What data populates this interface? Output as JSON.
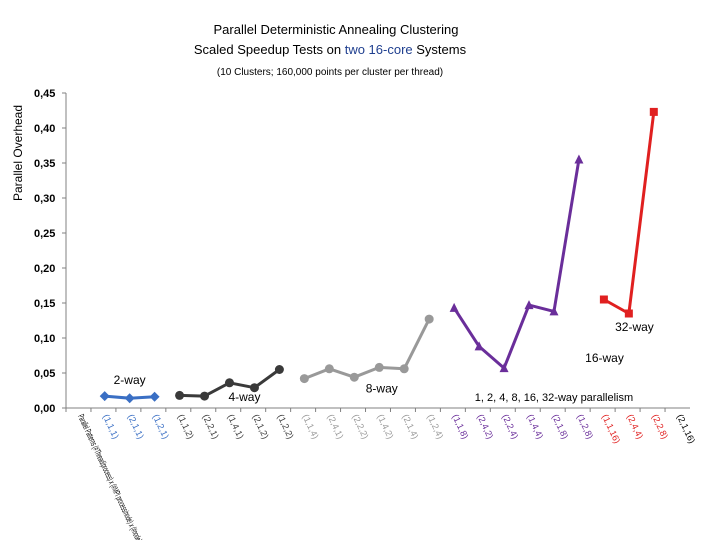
{
  "chart_data": {
    "type": "line",
    "title_line1": "Parallel Deterministic Annealing Clustering",
    "title_line2_prefix": "Scaled Speedup Tests on ",
    "title_line2_accent": "two 16-core",
    "title_line2_suffix": " Systems",
    "subtitle": "(10 Clusters; 160,000 points per cluster per thread)",
    "ylabel": "Parallel Overhead",
    "ylim": [
      0,
      0.45
    ],
    "yticks": [
      "0,00",
      "0,05",
      "0,10",
      "0,15",
      "0,20",
      "0,25",
      "0,30",
      "0,35",
      "0,40",
      "0,45"
    ],
    "grid": false,
    "categories": [
      "Parallel Patterns (#Thread/process) x (#MPI process/node) x (#node)",
      "(1,1,1)",
      "(2,1,1)",
      "(1,2,1)",
      "(1,1,2)",
      "(2,2,1)",
      "(1,4,1)",
      "(2,1,2)",
      "(1,2,2)",
      "(1,1,4)",
      "(2,4,1)",
      "(2,2,2)",
      "(1,4,2)",
      "(2,1,4)",
      "(1,2,4)",
      "(1,1,8)",
      "(2,4,2)",
      "(2,2,4)",
      "(1,4,4)",
      "(2,1,8)",
      "(1,2,8)",
      "(1,1,16)",
      "(2,4,4)",
      "(2,2,8)",
      "(2,1,16)"
    ],
    "series": [
      {
        "name": "2-way",
        "color": "#3a6fc4",
        "marker": "diamond",
        "x": [
          1,
          2,
          3
        ],
        "values": [
          0.017,
          0.014,
          0.016
        ]
      },
      {
        "name": "4-way",
        "color": "#3a3a3a",
        "marker": "circle",
        "x": [
          4,
          5,
          6,
          7,
          8
        ],
        "values": [
          0.018,
          0.017,
          0.036,
          0.029,
          0.055
        ]
      },
      {
        "name": "8-way",
        "color": "#999999",
        "marker": "circle",
        "x": [
          9,
          10,
          11,
          12,
          13,
          14
        ],
        "values": [
          0.042,
          0.056,
          0.044,
          0.058,
          0.056,
          0.127
        ]
      },
      {
        "name": "16-way",
        "color": "#6a2e9a",
        "marker": "triangle",
        "x": [
          15,
          16,
          17,
          18,
          19,
          20
        ],
        "values": [
          0.143,
          0.088,
          0.057,
          0.147,
          0.138,
          0.355
        ]
      },
      {
        "name": "32-way",
        "color": "#e02020",
        "marker": "square",
        "x": [
          21,
          22,
          23
        ],
        "values": [
          0.155,
          0.135,
          0.423
        ]
      }
    ],
    "series_label_positions": {
      "2-way": [
        2,
        0.034
      ],
      "4-way": [
        6.6,
        0.01
      ],
      "8-way": [
        12.1,
        0.022
      ],
      "16-way": [
        21.8,
        0.066
      ],
      "32-way": [
        23.0,
        0.11
      ]
    },
    "annotation": "1, 2, 4, 8, 16, 32-way parallelism",
    "annotation_position": [
      19,
      0.01
    ]
  }
}
